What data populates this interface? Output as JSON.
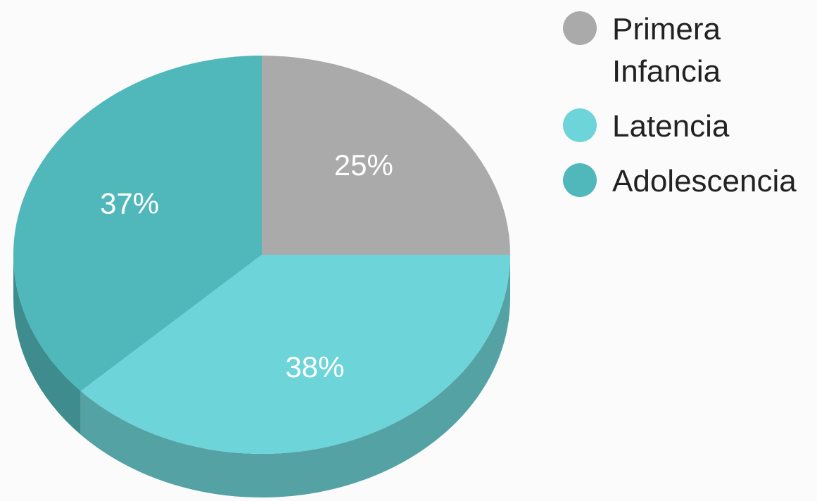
{
  "chart_data": {
    "type": "pie",
    "style": "3d",
    "categories": [
      "Primera Infancia",
      "Latencia",
      "Adolescencia"
    ],
    "values": [
      25,
      38,
      37
    ],
    "data_labels": [
      "25%",
      "38%",
      "37%"
    ],
    "colors": [
      "#aaaaaa",
      "#6dd4d9",
      "#50b7bb"
    ],
    "side_colors": [
      "#8c8c8c",
      "#55a2a5",
      "#3f8c8f"
    ],
    "legend_position": "right"
  }
}
